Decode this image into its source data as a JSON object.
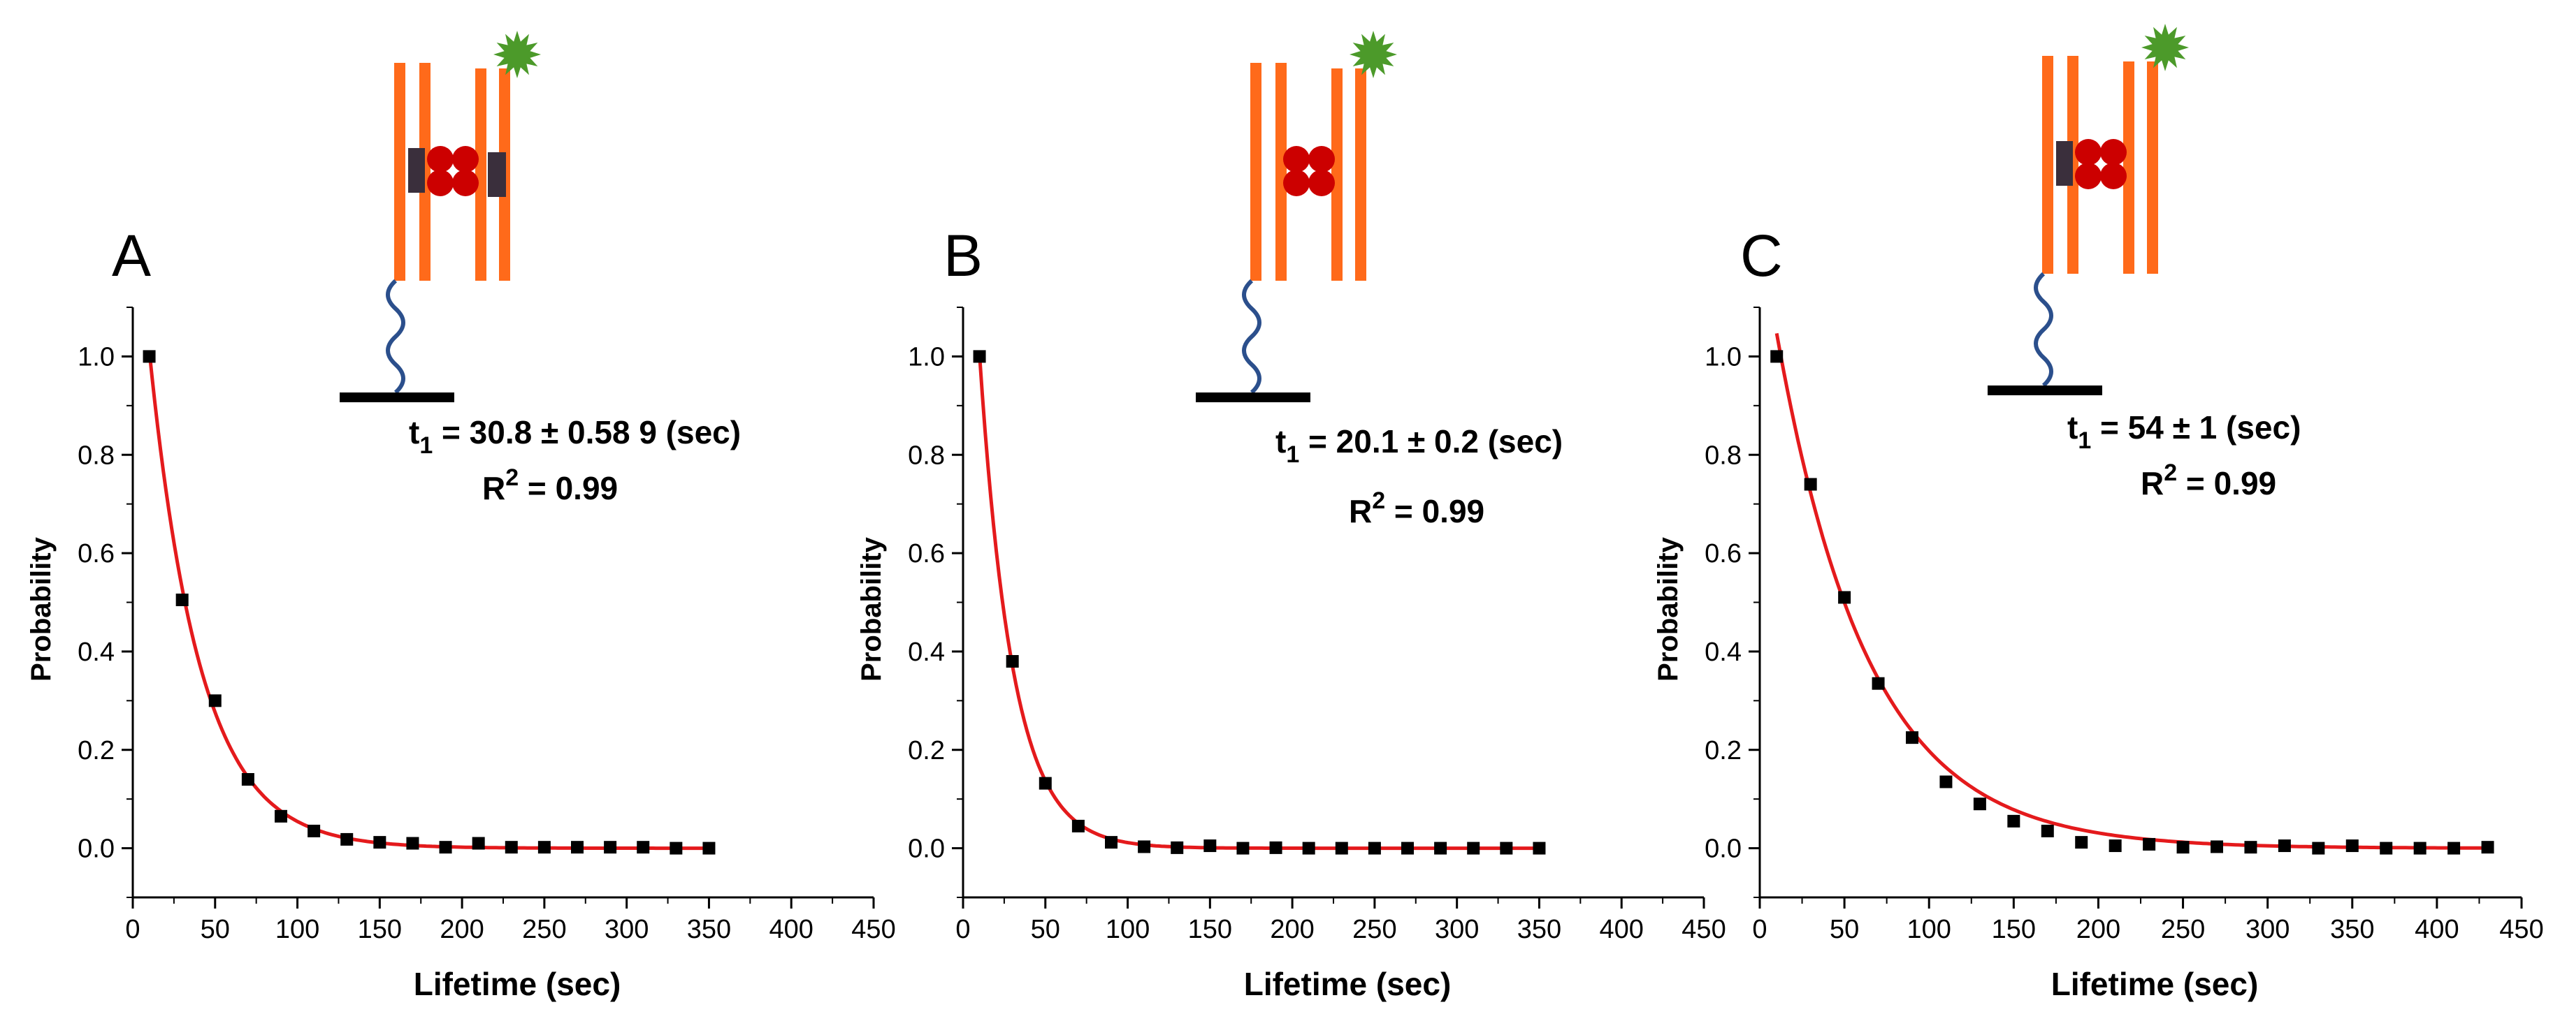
{
  "colors": {
    "fit_line": "#e41a1c",
    "marker": "#000000",
    "dna_strand": "#ff6a1a",
    "linker": "#2b4f8c",
    "substrate_bar": "#000000",
    "histone_core": "#cc0000",
    "protein_block": "#3a2f3c",
    "fluorophore": "#4c9a2a"
  },
  "icons": [
    "histone-dna-complex-icon",
    "fluorophore-star-icon",
    "surface-tether-icon"
  ],
  "chart_data": [
    {
      "type": "scatter",
      "panel_label": "A",
      "xlabel": "Lifetime (sec)",
      "ylabel": "Probability",
      "xlim": [
        0,
        450
      ],
      "ylim": [
        -0.1,
        1.1
      ],
      "xticks": [
        "0",
        "50",
        "100",
        "150",
        "200",
        "250",
        "300",
        "350",
        "400",
        "450"
      ],
      "yticks": [
        "0.0",
        "0.2",
        "0.4",
        "0.6",
        "0.8",
        "1.0"
      ],
      "annotation": {
        "t_label": "t",
        "t_sub": "1",
        "t_value": " = 30.8 ± 0.58 9 (sec)",
        "r_label": "R",
        "r_sup": "2",
        "r_value": " = 0.99"
      },
      "points_x": [
        10,
        30,
        50,
        70,
        90,
        110,
        130,
        150,
        170,
        190,
        210,
        230,
        250,
        270,
        290,
        310,
        330,
        350
      ],
      "points_y": [
        1.0,
        0.505,
        0.3,
        0.14,
        0.065,
        0.035,
        0.018,
        0.012,
        0.01,
        0.002,
        0.01,
        0.002,
        0.002,
        0.002,
        0.002,
        0.002,
        0.0,
        0.0
      ],
      "fit": {
        "model": "exp",
        "A": 1.4,
        "tau": 30.8,
        "x_start": 10,
        "x_end": 350
      },
      "diagram": {
        "blocks": "both"
      }
    },
    {
      "type": "scatter",
      "panel_label": "B",
      "xlabel": "Lifetime (sec)",
      "ylabel": "Probability",
      "xlim": [
        0,
        450
      ],
      "ylim": [
        -0.1,
        1.1
      ],
      "xticks": [
        "0",
        "50",
        "100",
        "150",
        "200",
        "250",
        "300",
        "350",
        "400",
        "450"
      ],
      "yticks": [
        "0.0",
        "0.2",
        "0.4",
        "0.6",
        "0.8",
        "1.0"
      ],
      "annotation": {
        "t_label": "t",
        "t_sub": "1",
        "t_value": " = 20.1 ± 0.2 (sec)",
        "r_label": "R",
        "r_sup": "2",
        "r_value": " = 0.99"
      },
      "points_x": [
        10,
        30,
        50,
        70,
        90,
        110,
        130,
        150,
        170,
        190,
        210,
        230,
        250,
        270,
        290,
        310,
        330,
        350
      ],
      "points_y": [
        1.0,
        0.38,
        0.132,
        0.045,
        0.012,
        0.003,
        0.001,
        0.005,
        0.0,
        0.001,
        0.0,
        0.0,
        0.0,
        0.0,
        0.0,
        0.0,
        0.0,
        0.0
      ],
      "fit": {
        "model": "exp",
        "A": 1.65,
        "tau": 20.1,
        "x_start": 10,
        "x_end": 350
      },
      "diagram": {
        "blocks": "none"
      }
    },
    {
      "type": "scatter",
      "panel_label": "C",
      "xlabel": "Lifetime (sec)",
      "ylabel": "Probability",
      "xlim": [
        0,
        450
      ],
      "ylim": [
        -0.1,
        1.1
      ],
      "xticks": [
        "0",
        "50",
        "100",
        "150",
        "200",
        "250",
        "300",
        "350",
        "400",
        "450"
      ],
      "yticks": [
        "0.0",
        "0.2",
        "0.4",
        "0.6",
        "0.8",
        "1.0"
      ],
      "annotation": {
        "t_label": "t",
        "t_sub": "1",
        "t_value": " = 54 ± 1 (sec)",
        "r_label": "R",
        "r_sup": "2",
        "r_value": " = 0.99"
      },
      "points_x": [
        10,
        30,
        50,
        70,
        90,
        110,
        130,
        150,
        170,
        190,
        210,
        230,
        250,
        270,
        290,
        310,
        330,
        350,
        370,
        390,
        410,
        430
      ],
      "points_y": [
        1.0,
        0.74,
        0.51,
        0.335,
        0.225,
        0.135,
        0.09,
        0.055,
        0.035,
        0.012,
        0.005,
        0.008,
        0.002,
        0.003,
        0.002,
        0.005,
        0.0,
        0.005,
        0.0,
        0.0,
        0.0,
        0.002
      ],
      "fit": {
        "model": "exp",
        "A": 1.26,
        "tau": 54,
        "x_start": 10,
        "x_end": 430
      },
      "diagram": {
        "blocks": "left"
      }
    }
  ]
}
